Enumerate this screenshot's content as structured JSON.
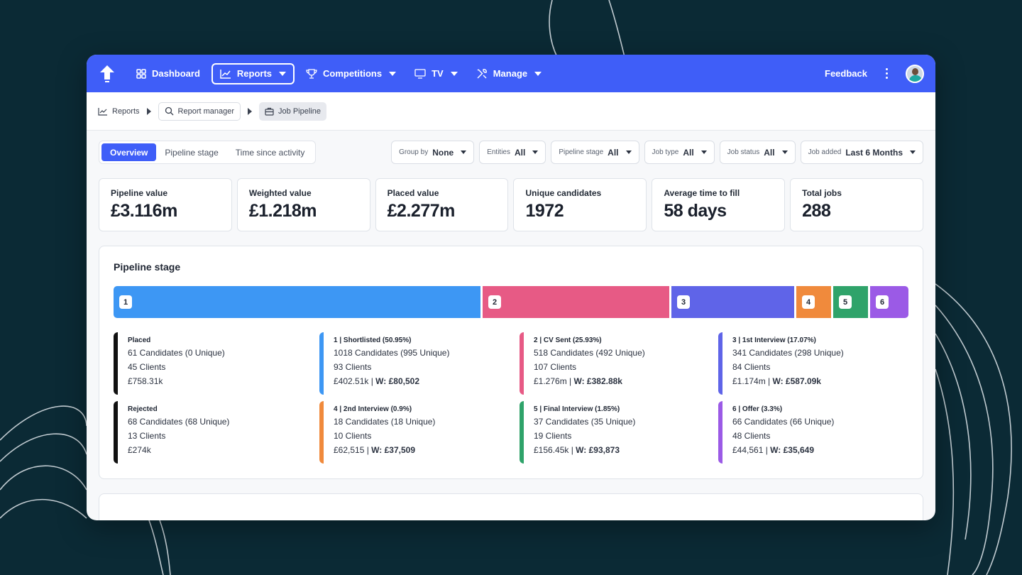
{
  "nav": {
    "items": [
      {
        "label": "Dashboard",
        "icon": "grid-icon"
      },
      {
        "label": "Reports",
        "icon": "chart-icon"
      },
      {
        "label": "Competitions",
        "icon": "trophy-icon"
      },
      {
        "label": "TV",
        "icon": "monitor-icon"
      },
      {
        "label": "Manage",
        "icon": "tools-icon"
      }
    ],
    "feedback": "Feedback"
  },
  "breadcrumb": {
    "reports": "Reports",
    "report_manager": "Report manager",
    "current": "Job Pipeline"
  },
  "tabs": {
    "overview": "Overview",
    "pipeline_stage": "Pipeline stage",
    "time_since_activity": "Time since activity"
  },
  "filters": [
    {
      "label": "Group by",
      "value": "None"
    },
    {
      "label": "Entities",
      "value": "All"
    },
    {
      "label": "Pipeline stage",
      "value": "All"
    },
    {
      "label": "Job type",
      "value": "All"
    },
    {
      "label": "Job status",
      "value": "All"
    },
    {
      "label": "Job added",
      "value": "Last 6 Months"
    }
  ],
  "kpis": [
    {
      "label": "Pipeline value",
      "value": "£3.116m"
    },
    {
      "label": "Weighted value",
      "value": "£1.218m"
    },
    {
      "label": "Placed value",
      "value": "£2.277m"
    },
    {
      "label": "Unique candidates",
      "value": "1972"
    },
    {
      "label": "Average time to fill",
      "value": "58 days"
    },
    {
      "label": "Total jobs",
      "value": "288"
    }
  ],
  "pipeline": {
    "title": "Pipeline stage",
    "segments": [
      {
        "label": "1",
        "share": 0.4678,
        "color": "#3d97f4"
      },
      {
        "label": "2",
        "share": 0.2381,
        "color": "#e75a85"
      },
      {
        "label": "3",
        "share": 0.1567,
        "color": "#5f64e8"
      },
      {
        "label": "4",
        "share": 0.0447,
        "color": "#f08a3c"
      },
      {
        "label": "5",
        "share": 0.0447,
        "color": "#2fa36a"
      },
      {
        "label": "6",
        "share": 0.0447,
        "color": "#9b5ae6"
      }
    ],
    "stages": [
      {
        "title": "Placed",
        "candidates": "61 Candidates (0 Unique)",
        "clients": "45 Clients",
        "value": "£758.31k",
        "weighted": "",
        "color": "#111111"
      },
      {
        "title": "1 | Shortlisted (50.95%)",
        "candidates": "1018 Candidates (995 Unique)",
        "clients": "93 Clients",
        "value": "£402.51k | ",
        "weighted": "W: £80,502",
        "color": "#3d97f4"
      },
      {
        "title": "2 | CV Sent (25.93%)",
        "candidates": "518 Candidates (492 Unique)",
        "clients": "107 Clients",
        "value": "£1.276m | ",
        "weighted": "W: £382.88k",
        "color": "#e75a85"
      },
      {
        "title": "3 | 1st Interview (17.07%)",
        "candidates": "341 Candidates (298 Unique)",
        "clients": "84 Clients",
        "value": "£1.174m | ",
        "weighted": "W: £587.09k",
        "color": "#5f64e8"
      },
      {
        "title": "Rejected",
        "candidates": "68 Candidates (68 Unique)",
        "clients": "13 Clients",
        "value": "£274k",
        "weighted": "",
        "color": "#111111"
      },
      {
        "title": "4 | 2nd Interview (0.9%)",
        "candidates": "18 Candidates (18 Unique)",
        "clients": "10 Clients",
        "value": "£62,515 | ",
        "weighted": "W: £37,509",
        "color": "#f08a3c"
      },
      {
        "title": "5 | Final Interview (1.85%)",
        "candidates": "37 Candidates (35 Unique)",
        "clients": "19 Clients",
        "value": "£156.45k | ",
        "weighted": "W: £93,873",
        "color": "#2fa36a"
      },
      {
        "title": "6 | Offer (3.3%)",
        "candidates": "66 Candidates (66 Unique)",
        "clients": "48 Clients",
        "value": "£44,561 | ",
        "weighted": "W: £35,649",
        "color": "#9b5ae6"
      }
    ]
  }
}
